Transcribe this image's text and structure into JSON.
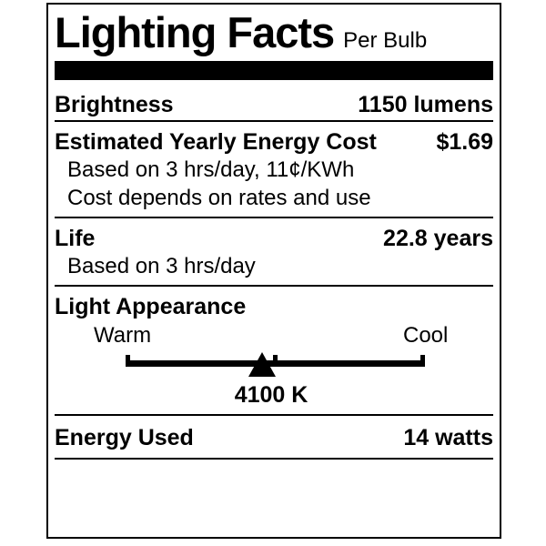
{
  "label": {
    "title": "Lighting Facts",
    "subtitle": "Per Bulb",
    "brightness": {
      "label": "Brightness",
      "value": "1150 lumens"
    },
    "energy_cost": {
      "label": "Estimated Yearly Energy Cost",
      "value": "$1.69",
      "notes": [
        "Based on 3 hrs/day, 11¢/KWh",
        "Cost depends on rates and use"
      ]
    },
    "life": {
      "label": "Life",
      "value": "22.8 years",
      "note": "Based on 3 hrs/day"
    },
    "light_appearance": {
      "label": "Light Appearance",
      "warm_label": "Warm",
      "cool_label": "Cool",
      "kelvin": "4100 K",
      "marker_position_pct": 45.6
    },
    "energy_used": {
      "label": "Energy Used",
      "value": "14 watts"
    },
    "colors": {
      "ink": "#000000",
      "background": "#ffffff"
    }
  }
}
